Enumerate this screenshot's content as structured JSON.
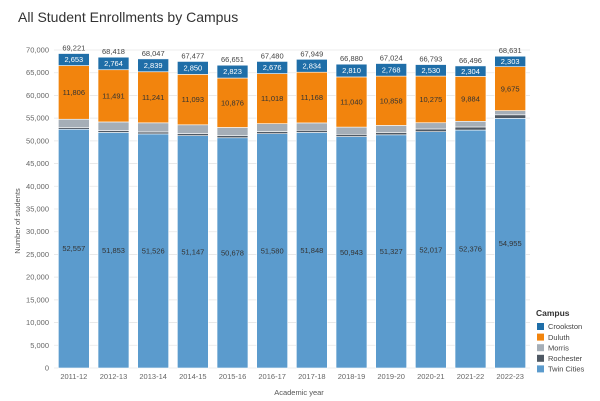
{
  "chart_data": {
    "type": "bar",
    "stacked": true,
    "title": "All Student Enrollments by Campus",
    "xlabel": "Academic year",
    "ylabel": "Number of students",
    "ylim": [
      0,
      70000
    ],
    "yticks": [
      0,
      5000,
      10000,
      15000,
      20000,
      25000,
      30000,
      35000,
      40000,
      45000,
      50000,
      55000,
      60000,
      65000,
      70000
    ],
    "ytick_labels": [
      "0",
      "5,000",
      "10,000",
      "15,000",
      "20,000",
      "25,000",
      "30,000",
      "35,000",
      "40,000",
      "45,000",
      "50,000",
      "55,000",
      "60,000",
      "65,000",
      "70,000"
    ],
    "grid": true,
    "categories": [
      "2011-12",
      "2012-13",
      "2013-14",
      "2014-15",
      "2015-16",
      "2016-17",
      "2017-18",
      "2018-19",
      "2019-20",
      "2020-21",
      "2021-22",
      "2022-23"
    ],
    "totals": [
      69221,
      68418,
      68047,
      67477,
      66651,
      67480,
      67949,
      66880,
      67024,
      66793,
      66496,
      68631
    ],
    "total_labels": [
      "69,221",
      "68,418",
      "68,047",
      "67,477",
      "66,651",
      "67,480",
      "67,949",
      "66,880",
      "67,024",
      "66,793",
      "66,496",
      "68,631"
    ],
    "series": [
      {
        "name": "Twin Cities",
        "color": "#5b9bcd",
        "label_color": "#333333",
        "values": [
          52557,
          51853,
          51526,
          51147,
          50678,
          51580,
          51848,
          50943,
          51327,
          52017,
          52376,
          54955
        ],
        "labels": [
          "52,557",
          "51,853",
          "51,526",
          "51,147",
          "50,678",
          "51,580",
          "51,848",
          "50,943",
          "51,327",
          "52,017",
          "52,376",
          "54,955"
        ]
      },
      {
        "name": "Rochester",
        "color": "#4f5964",
        "values": [
          400,
          420,
          440,
          460,
          460,
          470,
          480,
          500,
          520,
          600,
          680,
          780
        ]
      },
      {
        "name": "Morris",
        "color": "#a5aeb7",
        "values": [
          1805,
          1890,
          2001,
          1927,
          1814,
          1736,
          1619,
          1587,
          1551,
          1371,
          1252,
          918
        ]
      },
      {
        "name": "Duluth",
        "color": "#f2840d",
        "label_color": "#333333",
        "values": [
          11806,
          11491,
          11241,
          11093,
          10876,
          11018,
          11168,
          11040,
          10858,
          10275,
          9884,
          9675
        ],
        "labels": [
          "11,806",
          "11,491",
          "11,241",
          "11,093",
          "10,876",
          "11,018",
          "11,168",
          "11,040",
          "10,858",
          "10,275",
          "9,884",
          "9,675"
        ]
      },
      {
        "name": "Crookston",
        "color": "#1f6ea8",
        "label_color": "#ffffff",
        "values": [
          2653,
          2764,
          2839,
          2850,
          2823,
          2676,
          2834,
          2810,
          2768,
          2530,
          2304,
          2303
        ],
        "labels": [
          "2,653",
          "2,764",
          "2,839",
          "2,850",
          "2,823",
          "2,676",
          "2,834",
          "2,810",
          "2,768",
          "2,530",
          "2,304",
          "2,303"
        ]
      }
    ],
    "legend": {
      "title": "Campus",
      "position": "bottom-right",
      "items": [
        "Crookston",
        "Duluth",
        "Morris",
        "Rochester",
        "Twin Cities"
      ]
    }
  }
}
